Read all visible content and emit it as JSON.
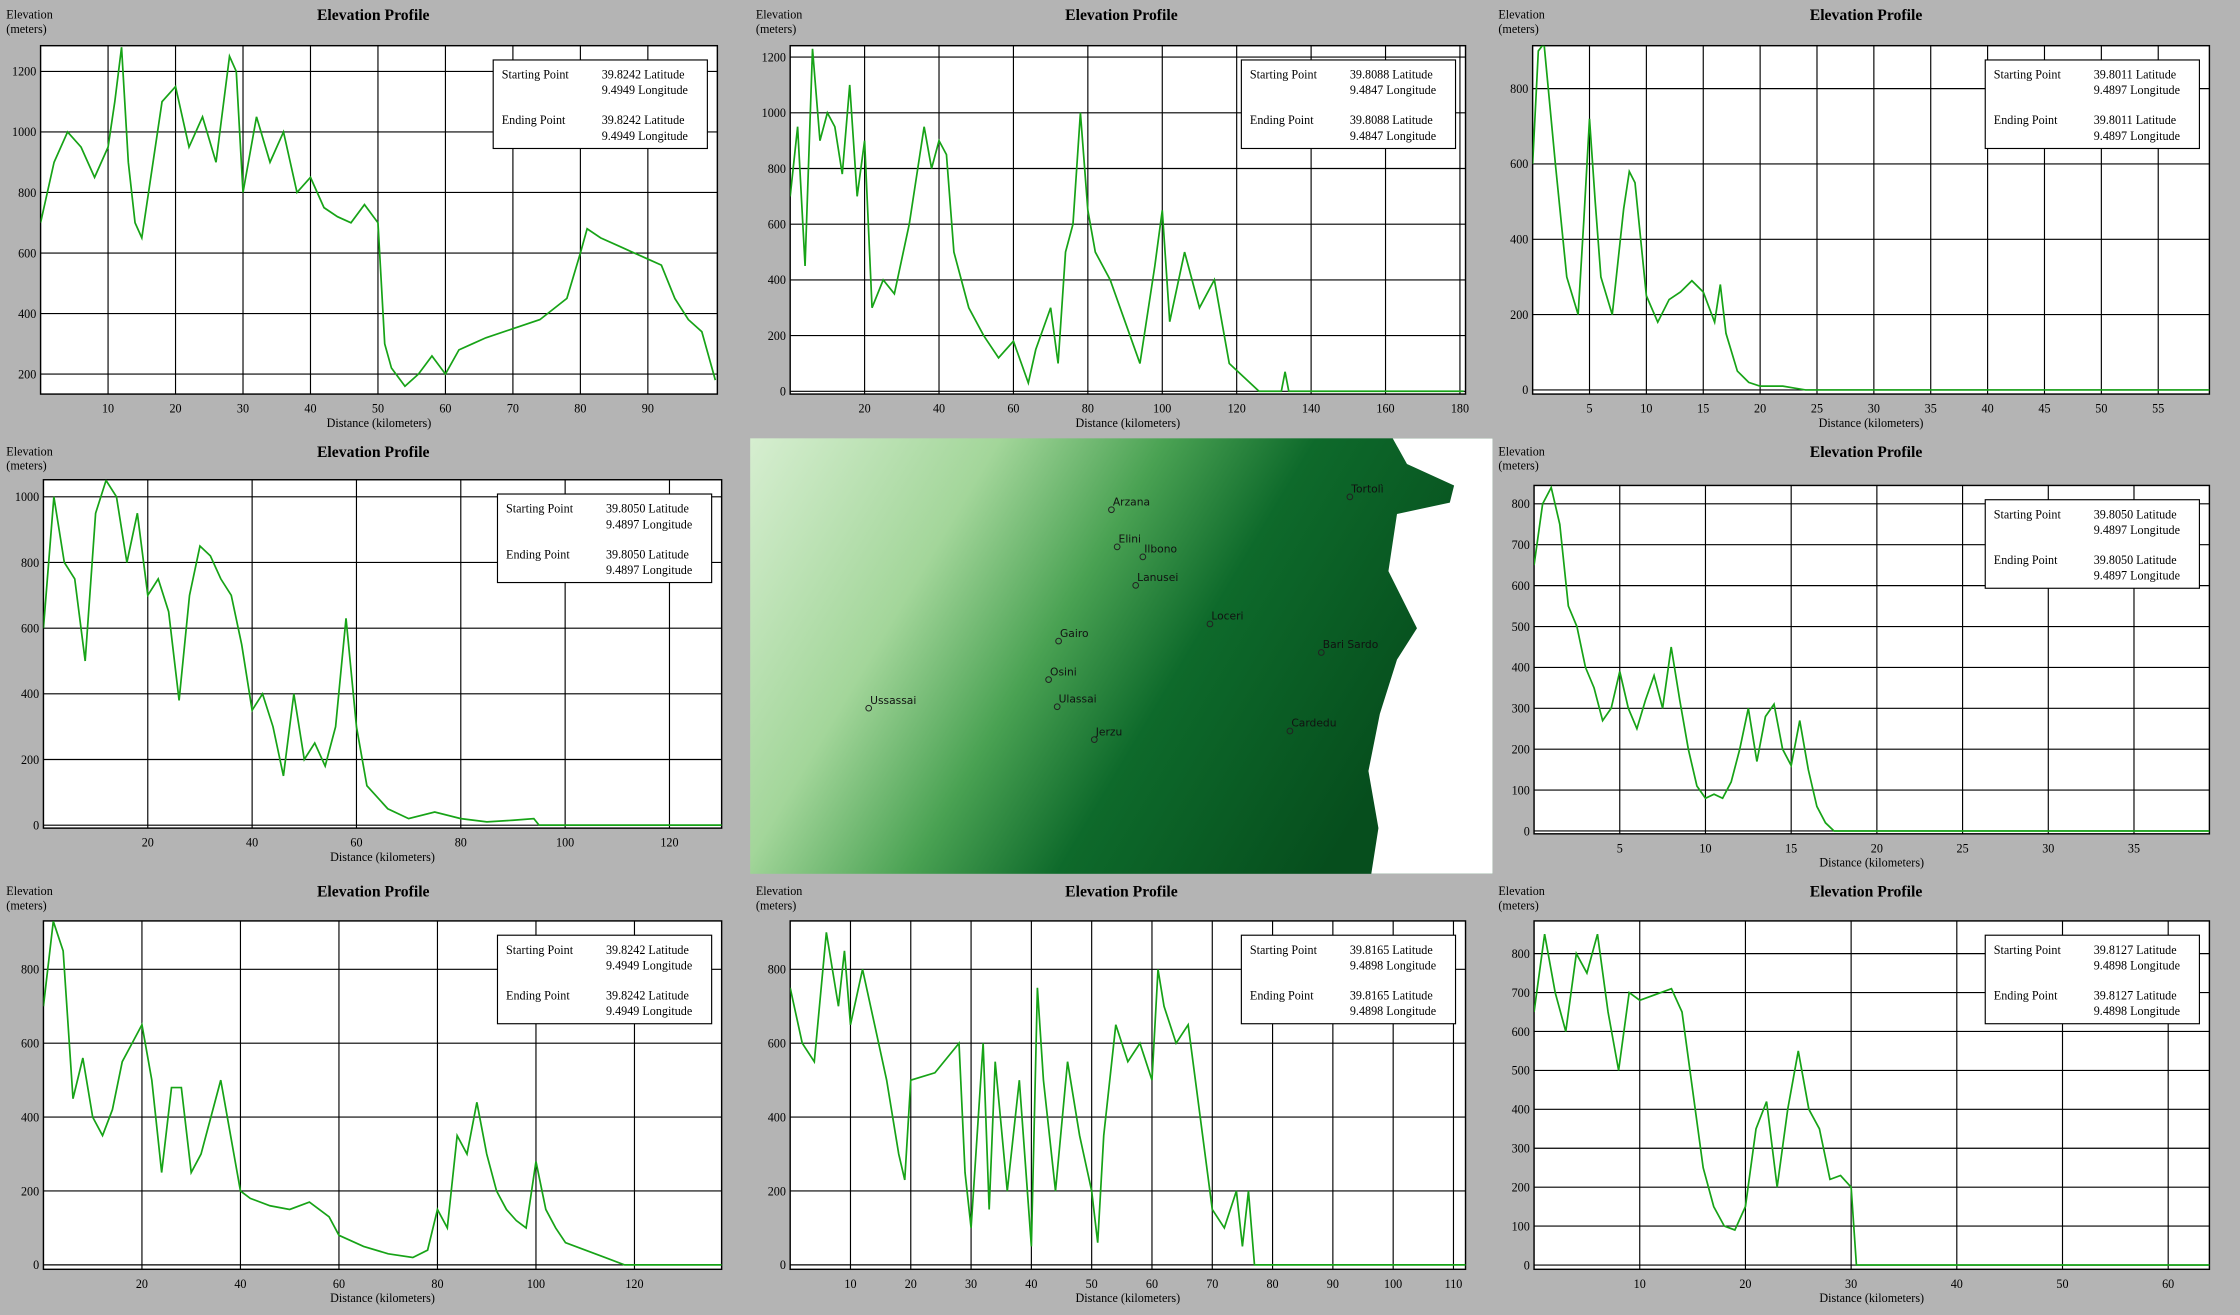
{
  "chart_data": [
    {
      "type": "line",
      "title": "Elevation Profile",
      "ylabel": [
        "Elevation",
        "(meters)"
      ],
      "xlabel": "Distance (kilometers)",
      "color": "#17a317",
      "grid": true,
      "xlim": [
        0,
        100.3
      ],
      "ylim": [
        134,
        1285
      ],
      "xticks": [
        10,
        20,
        30,
        40,
        50,
        60,
        70,
        80,
        90
      ],
      "yticks": [
        200,
        400,
        600,
        800,
        1000,
        1200
      ],
      "info": {
        "start_label": "Starting Point",
        "start_lat": "39.8242 Latitude",
        "start_lon": "9.4949 Longitude",
        "end_label": "Ending Point",
        "end_lat": "39.8242 Latitude",
        "end_lon": "9.4949 Longitude"
      },
      "x": [
        0,
        2,
        4,
        6,
        8,
        10,
        11,
        12,
        13,
        14,
        15,
        16,
        18,
        20,
        22,
        24,
        26,
        28,
        29,
        30,
        32,
        34,
        36,
        38,
        40,
        42,
        44,
        46,
        48,
        50,
        51,
        52,
        54,
        56,
        58,
        60,
        62,
        64,
        66,
        70,
        74,
        78,
        80,
        81,
        83,
        86,
        90,
        92,
        94,
        96,
        98,
        100
      ],
      "values": [
        700,
        900,
        1000,
        950,
        850,
        950,
        1100,
        1280,
        900,
        700,
        650,
        800,
        1100,
        1150,
        950,
        1050,
        900,
        1250,
        1200,
        800,
        1050,
        900,
        1000,
        800,
        850,
        750,
        720,
        700,
        760,
        700,
        300,
        220,
        160,
        200,
        260,
        200,
        280,
        300,
        320,
        350,
        380,
        450,
        600,
        680,
        650,
        620,
        580,
        560,
        450,
        380,
        340,
        180
      ]
    },
    {
      "type": "line",
      "title": "Elevation Profile",
      "ylabel": [
        "Elevation",
        "(meters)"
      ],
      "xlabel": "Distance (kilometers)",
      "color": "#17a317",
      "grid": true,
      "xlim": [
        0,
        181.5
      ],
      "ylim": [
        -10,
        1241
      ],
      "xticks": [
        20,
        40,
        60,
        80,
        100,
        120,
        140,
        160,
        180
      ],
      "yticks": [
        0,
        200,
        400,
        600,
        800,
        1000,
        1200
      ],
      "info": {
        "start_label": "Starting Point",
        "start_lat": "39.8088 Latitude",
        "start_lon": "9.4847 Longitude",
        "end_label": "Ending Point",
        "end_lat": "39.8088 Latitude",
        "end_lon": "9.4847 Longitude"
      },
      "x": [
        0,
        2,
        4,
        6,
        8,
        10,
        12,
        14,
        16,
        18,
        20,
        22,
        25,
        28,
        32,
        36,
        38,
        40,
        42,
        44,
        48,
        52,
        56,
        60,
        64,
        66,
        70,
        72,
        74,
        76,
        78,
        80,
        82,
        86,
        90,
        94,
        98,
        100,
        102,
        106,
        110,
        114,
        118,
        122,
        126,
        132,
        133,
        134,
        181
      ],
      "values": [
        700,
        950,
        450,
        1230,
        900,
        1000,
        950,
        780,
        1100,
        700,
        900,
        300,
        400,
        350,
        600,
        950,
        800,
        900,
        850,
        500,
        300,
        200,
        120,
        180,
        30,
        150,
        300,
        100,
        500,
        600,
        1000,
        650,
        500,
        400,
        250,
        100,
        450,
        650,
        250,
        500,
        300,
        400,
        100,
        50,
        0,
        0,
        70,
        0,
        0
      ]
    },
    {
      "type": "line",
      "title": "Elevation Profile",
      "ylabel": [
        "Elevation",
        "(meters)"
      ],
      "xlabel": "Distance (kilometers)",
      "color": "#17a317",
      "grid": true,
      "xlim": [
        0,
        59.5
      ],
      "ylim": [
        -11,
        914
      ],
      "xticks": [
        5,
        10,
        15,
        20,
        25,
        30,
        35,
        40,
        45,
        50,
        55
      ],
      "yticks": [
        0,
        200,
        400,
        600,
        800
      ],
      "info": {
        "start_label": "Starting Point",
        "start_lat": "39.8011 Latitude",
        "start_lon": "9.4897 Longitude",
        "end_label": "Ending Point",
        "end_lat": "39.8011 Latitude",
        "end_lon": "9.4897 Longitude"
      },
      "x": [
        0,
        0.5,
        1,
        2,
        3,
        4,
        4.5,
        5,
        5.5,
        6,
        7,
        8,
        8.5,
        9,
        10,
        11,
        12,
        13,
        14,
        15,
        16,
        16.5,
        17,
        18,
        19,
        20,
        22,
        23,
        24,
        59.5
      ],
      "values": [
        600,
        900,
        920,
        600,
        300,
        200,
        450,
        720,
        500,
        300,
        200,
        480,
        580,
        550,
        250,
        180,
        240,
        260,
        290,
        260,
        180,
        280,
        150,
        50,
        20,
        10,
        10,
        5,
        0,
        0
      ]
    },
    {
      "type": "line",
      "title": "Elevation Profile",
      "ylabel": [
        "Elevation",
        "(meters)"
      ],
      "xlabel": "Distance (kilometers)",
      "color": "#17a317",
      "grid": true,
      "xlim": [
        0,
        130
      ],
      "ylim": [
        -9,
        1052
      ],
      "xticks": [
        20,
        40,
        60,
        80,
        100,
        120
      ],
      "yticks": [
        0,
        200,
        400,
        600,
        800,
        1000
      ],
      "info": {
        "start_label": "Starting Point",
        "start_lat": "39.8050 Latitude",
        "start_lon": "9.4897 Longitude",
        "end_label": "Ending Point",
        "end_lat": "39.8050 Latitude",
        "end_lon": "9.4897 Longitude"
      },
      "x": [
        0,
        2,
        4,
        6,
        8,
        10,
        12,
        14,
        16,
        18,
        20,
        22,
        24,
        26,
        28,
        30,
        32,
        34,
        36,
        38,
        40,
        42,
        44,
        46,
        48,
        50,
        52,
        54,
        56,
        58,
        60,
        62,
        66,
        70,
        75,
        80,
        85,
        90,
        94,
        95,
        130
      ],
      "values": [
        600,
        1000,
        800,
        750,
        500,
        950,
        1050,
        1000,
        800,
        950,
        700,
        750,
        650,
        380,
        700,
        850,
        820,
        750,
        700,
        550,
        350,
        400,
        300,
        150,
        400,
        200,
        250,
        180,
        300,
        630,
        300,
        120,
        50,
        20,
        40,
        20,
        10,
        15,
        20,
        0,
        0
      ]
    },
    {
      "type": "line",
      "title": "Elevation Profile",
      "ylabel": [
        "Elevation",
        "(meters)"
      ],
      "xlabel": "Distance (kilometers)",
      "color": "#17a317",
      "grid": true,
      "xlim": [
        0,
        39.4
      ],
      "ylim": [
        -7,
        845
      ],
      "xticks": [
        5,
        10,
        15,
        20,
        25,
        30,
        35
      ],
      "yticks": [
        0,
        100,
        200,
        300,
        400,
        500,
        600,
        700,
        800
      ],
      "info": {
        "start_label": "Starting Point",
        "start_lat": "39.8050 Latitude",
        "start_lon": "9.4897 Longitude",
        "end_label": "Ending Point",
        "end_lat": "39.8050 Latitude",
        "end_lon": "9.4897 Longitude"
      },
      "x": [
        0,
        0.5,
        1,
        1.5,
        2,
        2.5,
        3,
        3.5,
        4,
        4.5,
        5,
        5.5,
        6,
        6.5,
        7,
        7.5,
        8,
        8.5,
        9,
        9.5,
        10,
        10.5,
        11,
        11.5,
        12,
        12.5,
        13,
        13.5,
        14,
        14.5,
        15,
        15.5,
        16,
        16.5,
        17,
        17.5,
        39.4
      ],
      "values": [
        650,
        800,
        840,
        750,
        550,
        500,
        400,
        350,
        270,
        300,
        390,
        300,
        250,
        320,
        380,
        300,
        450,
        320,
        200,
        110,
        80,
        90,
        80,
        120,
        200,
        300,
        170,
        280,
        310,
        200,
        160,
        270,
        150,
        60,
        20,
        0,
        0
      ]
    },
    {
      "type": "line",
      "title": "Elevation Profile",
      "ylabel": [
        "Elevation",
        "(meters)"
      ],
      "xlabel": "Distance (kilometers)",
      "color": "#17a317",
      "grid": true,
      "xlim": [
        0,
        137.7
      ],
      "ylim": [
        -12,
        931
      ],
      "xticks": [
        20,
        40,
        60,
        80,
        100,
        120
      ],
      "yticks": [
        0,
        200,
        400,
        600,
        800
      ],
      "info": {
        "start_label": "Starting Point",
        "start_lat": "39.8242 Latitude",
        "start_lon": "9.4949 Longitude",
        "end_label": "Ending Point",
        "end_lat": "39.8242 Latitude",
        "end_lon": "9.4949 Longitude"
      },
      "x": [
        0,
        2,
        4,
        6,
        8,
        10,
        12,
        14,
        16,
        18,
        20,
        22,
        24,
        26,
        28,
        30,
        32,
        34,
        36,
        38,
        40,
        42,
        46,
        50,
        54,
        58,
        60,
        65,
        70,
        75,
        78,
        80,
        82,
        84,
        86,
        88,
        90,
        92,
        94,
        96,
        98,
        100,
        102,
        104,
        106,
        110,
        114,
        118,
        137.7
      ],
      "values": [
        700,
        930,
        850,
        450,
        560,
        400,
        350,
        420,
        550,
        600,
        650,
        500,
        250,
        480,
        480,
        250,
        300,
        400,
        500,
        350,
        200,
        180,
        160,
        150,
        170,
        130,
        80,
        50,
        30,
        20,
        40,
        150,
        100,
        350,
        300,
        440,
        300,
        200,
        150,
        120,
        100,
        280,
        150,
        100,
        60,
        40,
        20,
        0,
        0
      ]
    },
    {
      "type": "line",
      "title": "Elevation Profile",
      "ylabel": [
        "Elevation",
        "(meters)"
      ],
      "xlabel": "Distance (kilometers)",
      "color": "#17a317",
      "grid": true,
      "xlim": [
        0,
        112
      ],
      "ylim": [
        -12,
        931
      ],
      "xticks": [
        10,
        20,
        30,
        40,
        50,
        60,
        70,
        80,
        90,
        100,
        110
      ],
      "yticks": [
        0,
        200,
        400,
        600,
        800
      ],
      "info": {
        "start_label": "Starting Point",
        "start_lat": "39.8165 Latitude",
        "start_lon": "9.4898 Longitude",
        "end_label": "Ending Point",
        "end_lat": "39.8165 Latitude",
        "end_lon": "9.4898 Longitude"
      },
      "x": [
        0,
        2,
        4,
        6,
        8,
        9,
        10,
        12,
        14,
        16,
        18,
        19,
        20,
        24,
        28,
        29,
        30,
        32,
        33,
        34,
        36,
        38,
        40,
        41,
        42,
        44,
        46,
        48,
        50,
        51,
        52,
        54,
        56,
        58,
        60,
        61,
        62,
        64,
        66,
        68,
        70,
        72,
        74,
        75,
        76,
        77,
        112
      ],
      "values": [
        750,
        600,
        550,
        900,
        700,
        850,
        650,
        800,
        650,
        500,
        300,
        230,
        500,
        520,
        600,
        250,
        100,
        600,
        150,
        550,
        200,
        500,
        50,
        750,
        500,
        200,
        550,
        350,
        200,
        60,
        350,
        650,
        550,
        600,
        500,
        800,
        700,
        600,
        650,
        400,
        150,
        100,
        200,
        50,
        200,
        0,
        0
      ]
    },
    {
      "type": "line",
      "title": "Elevation Profile",
      "ylabel": [
        "Elevation",
        "(meters)"
      ],
      "xlabel": "Distance (kilometers)",
      "color": "#17a317",
      "grid": true,
      "xlim": [
        0,
        63.9
      ],
      "ylim": [
        -11,
        884
      ],
      "xticks": [
        10,
        20,
        30,
        40,
        50,
        60
      ],
      "yticks": [
        0,
        100,
        200,
        300,
        400,
        500,
        600,
        700,
        800
      ],
      "info": {
        "start_label": "Starting Point",
        "start_lat": "39.8127 Latitude",
        "start_lon": "9.4898 Longitude",
        "end_label": "Ending Point",
        "end_lat": "39.8127 Latitude",
        "end_lon": "9.4898 Longitude"
      },
      "x": [
        0,
        1,
        2,
        3,
        4,
        5,
        6,
        7,
        8,
        9,
        10,
        11,
        12,
        13,
        14,
        15,
        16,
        17,
        18,
        19,
        20,
        21,
        22,
        23,
        24,
        25,
        26,
        27,
        28,
        29,
        30,
        30.5,
        63.9
      ],
      "values": [
        650,
        850,
        700,
        600,
        800,
        750,
        850,
        650,
        500,
        700,
        680,
        690,
        700,
        710,
        650,
        450,
        250,
        150,
        100,
        90,
        150,
        350,
        420,
        200,
        400,
        550,
        400,
        350,
        220,
        230,
        200,
        0,
        0
      ]
    }
  ],
  "map": {
    "places": [
      "Arzana",
      "Elini",
      "Ilbono",
      "Lanusei",
      "Loceri",
      "Gairo",
      "Osini",
      "Ussassai",
      "Ulassai",
      "Jerzu",
      "Bari Sardo",
      "Cardedu",
      "Tortolì"
    ]
  }
}
